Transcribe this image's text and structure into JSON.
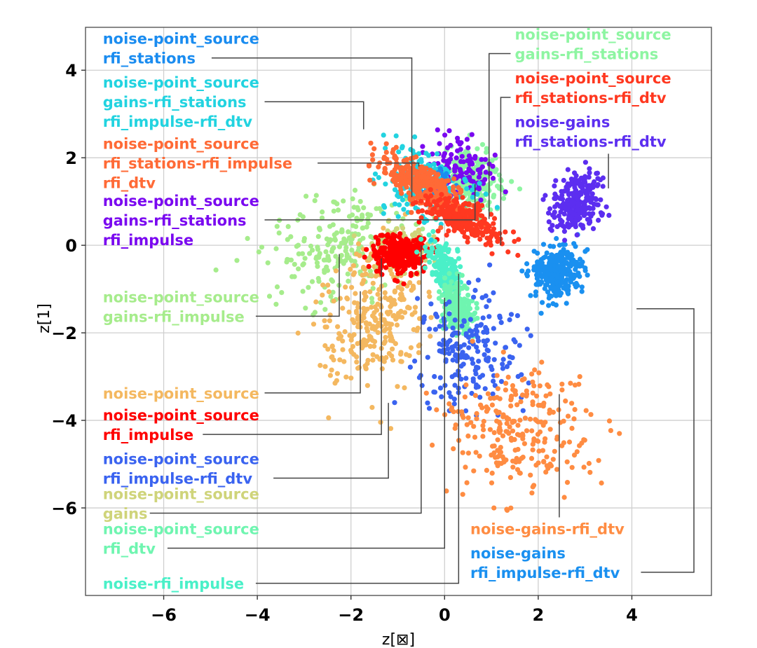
{
  "chart_data": {
    "type": "scatter",
    "title": "",
    "xlabel": "z[⊠]",
    "ylabel": "z[1]",
    "xlim": [
      -7.67,
      5.7
    ],
    "ylim": [
      -8.0,
      4.98
    ],
    "xticks": [
      -6,
      -4,
      -2,
      0,
      2,
      4
    ],
    "yticks": [
      4,
      2,
      0,
      -2,
      -4,
      -6
    ],
    "xtick_labels": [
      "−6",
      "−4",
      "−2",
      "0",
      "2",
      "4"
    ],
    "ytick_labels": [
      "4",
      "2",
      "0",
      "−2",
      "−4",
      "−6"
    ],
    "grid": true,
    "legend": "none (inline cluster annotations with leader lines)",
    "series": [
      {
        "name": "noise-point_source gains-rfi_impulse",
        "color": "#a6ec8c",
        "center": [
          -2.2,
          0.0
        ],
        "spread": [
          1.4,
          1.0
        ],
        "angle_deg": 35,
        "count": 230,
        "seed": 11
      },
      {
        "name": "noise-point_source",
        "color": "#f4b860",
        "center": [
          -1.5,
          -1.6
        ],
        "spread": [
          0.9,
          1.3
        ],
        "angle_deg": -20,
        "count": 300,
        "seed": 12
      },
      {
        "name": "noise-point_source gains",
        "color": "#cfd47a",
        "center": [
          -0.9,
          -0.1
        ],
        "spread": [
          0.55,
          0.45
        ],
        "angle_deg": 0,
        "count": 120,
        "seed": 13
      },
      {
        "name": "noise-point_source rfi_impulse",
        "color": "#ff0000",
        "center": [
          -0.95,
          -0.2
        ],
        "spread": [
          0.45,
          0.38
        ],
        "angle_deg": 0,
        "count": 330,
        "seed": 14
      },
      {
        "name": "noise-rfi_impulse",
        "color": "#4af0c8",
        "center": [
          0.0,
          -0.55
        ],
        "spread": [
          0.22,
          0.6
        ],
        "angle_deg": 20,
        "count": 200,
        "seed": 15
      },
      {
        "name": "noise-point_source rfi_dtv",
        "color": "#6ff5b0",
        "center": [
          0.3,
          -1.4
        ],
        "spread": [
          0.25,
          0.5
        ],
        "angle_deg": 20,
        "count": 200,
        "seed": 16
      },
      {
        "name": "noise-point_source rfi_impulse-rfi_dtv",
        "color": "#3a63f0",
        "center": [
          0.6,
          -2.4
        ],
        "spread": [
          0.9,
          1.1
        ],
        "angle_deg": -30,
        "count": 200,
        "seed": 17
      },
      {
        "name": "noise-gains-rfi_dtv",
        "color": "#ff8c42",
        "center": [
          1.5,
          -4.3
        ],
        "spread": [
          1.3,
          1.2
        ],
        "angle_deg": 0,
        "count": 260,
        "seed": 18
      },
      {
        "name": "noise-gains rfi_impulse-rfi_dtv",
        "color": "#1a90f0",
        "center": [
          2.4,
          -0.6
        ],
        "spread": [
          0.45,
          0.5
        ],
        "angle_deg": -25,
        "count": 300,
        "seed": 19
      },
      {
        "name": "noise-gains rfi_stations-rfi_dtv",
        "color": "#5c2ef0",
        "center": [
          2.8,
          1.0
        ],
        "spread": [
          0.45,
          0.55
        ],
        "angle_deg": -30,
        "count": 240,
        "seed": 20
      },
      {
        "name": "noise-point_source gains-rfi_stations",
        "color": "#8ef5a2",
        "center": [
          0.6,
          1.5
        ],
        "spread": [
          0.5,
          0.55
        ],
        "angle_deg": 0,
        "count": 260,
        "seed": 21
      },
      {
        "name": "noise-point_source gains-rfi_stations rfi_impulse",
        "color": "#7a08f0",
        "center": [
          0.3,
          1.7
        ],
        "spread": [
          0.6,
          0.6
        ],
        "angle_deg": -20,
        "count": 120,
        "seed": 22
      },
      {
        "name": "noise-point_source gains-rfi_stations rfi_impulse-rfi_dtv",
        "color": "#22d3e0",
        "center": [
          -0.4,
          1.4
        ],
        "spread": [
          0.75,
          0.6
        ],
        "angle_deg": -30,
        "count": 200,
        "seed": 23
      },
      {
        "name": "noise-point_source rfi_stations",
        "color": "#1a8cf0",
        "center": [
          -0.2,
          1.5
        ],
        "spread": [
          0.3,
          0.3
        ],
        "angle_deg": 0,
        "count": 30,
        "seed": 24
      },
      {
        "name": "noise-point_source rfi_stations-rfi_impulse rfi_dtv",
        "color": "#ff6a36",
        "center": [
          -0.5,
          1.4
        ],
        "spread": [
          0.9,
          0.35
        ],
        "angle_deg": -32,
        "count": 320,
        "seed": 25
      },
      {
        "name": "noise-point_source rfi_stations-rfi_dtv",
        "color": "#ff3820",
        "center": [
          0.4,
          0.6
        ],
        "spread": [
          0.75,
          0.3
        ],
        "angle_deg": -30,
        "count": 280,
        "seed": 26
      }
    ],
    "annotations": [
      {
        "lines": [
          "noise-point_source",
          "rfi_stations"
        ],
        "color": "#1a8cf0",
        "text_pos": [
          -7.3,
          4.6
        ],
        "anchor": [
          -0.7,
          1.1
        ],
        "elbow": "h-then-v"
      },
      {
        "lines": [
          "noise-point_source",
          "gains-rfi_stations",
          "rfi_impulse-rfi_dtv"
        ],
        "color": "#22d3e0",
        "text_pos": [
          -7.3,
          3.6
        ],
        "anchor": [
          -1.73,
          2.65
        ],
        "elbow": "h-then-v"
      },
      {
        "lines": [
          "noise-point_source",
          "rfi_stations-rfi_impulse",
          "rfi_dtv"
        ],
        "color": "#ff6a36",
        "text_pos": [
          -7.3,
          2.2
        ],
        "anchor": [
          -0.55,
          1.8
        ],
        "elbow": "h-then-v"
      },
      {
        "lines": [
          "noise-point_source",
          "gains-rfi_stations",
          "rfi_impulse"
        ],
        "color": "#7a08f0",
        "text_pos": [
          -7.3,
          0.9
        ],
        "anchor": [
          0.65,
          1.4
        ],
        "elbow": "h-then-v"
      },
      {
        "lines": [
          "noise-point_source",
          "gains-rfi_impulse"
        ],
        "color": "#a6ec8c",
        "text_pos": [
          -7.3,
          -1.3
        ],
        "anchor": [
          -2.25,
          -0.2
        ],
        "elbow": "h-then-v"
      },
      {
        "lines": [
          "noise-point_source"
        ],
        "color": "#f4b860",
        "text_pos": [
          -7.3,
          -3.5
        ],
        "anchor": [
          -1.8,
          -1.05
        ],
        "elbow": "h-then-v"
      },
      {
        "lines": [
          "noise-point_source",
          "rfi_impulse"
        ],
        "color": "#ff0000",
        "text_pos": [
          -7.3,
          -4.0
        ],
        "anchor": [
          -1.35,
          -0.3
        ],
        "elbow": "h-then-v"
      },
      {
        "lines": [
          "noise-point_source",
          "rfi_impulse-rfi_dtv"
        ],
        "color": "#3a63f0",
        "text_pos": [
          -7.3,
          -5.0
        ],
        "anchor": [
          -1.2,
          -3.6
        ],
        "elbow": "h-then-v"
      },
      {
        "lines": [
          "noise-point_source",
          "gains"
        ],
        "color": "#cfd47a",
        "text_pos": [
          -7.3,
          -5.8
        ],
        "anchor": [
          -0.5,
          -0.0
        ],
        "elbow": "h-then-v"
      },
      {
        "lines": [
          "noise-point_source",
          "rfi_dtv"
        ],
        "color": "#6ff5b0",
        "text_pos": [
          -7.3,
          -6.6
        ],
        "anchor": [
          0.0,
          -1.2
        ],
        "elbow": "h-then-v"
      },
      {
        "lines": [
          "noise-rfi_impulse"
        ],
        "color": "#4af0c8",
        "text_pos": [
          -7.3,
          -7.85
        ],
        "anchor": [
          0.3,
          -0.65
        ],
        "elbow": "h-then-v"
      },
      {
        "lines": [
          "noise-point_source",
          "gains-rfi_stations"
        ],
        "color": "#8ef5a2",
        "text_pos": [
          1.5,
          4.7
        ],
        "anchor": [
          0.95,
          0.6
        ],
        "elbow": "h-then-v"
      },
      {
        "lines": [
          "noise-point_source",
          "rfi_stations-rfi_dtv"
        ],
        "color": "#ff3820",
        "text_pos": [
          1.5,
          3.7
        ],
        "anchor": [
          1.2,
          0.0
        ],
        "elbow": "h-then-v"
      },
      {
        "lines": [
          "noise-gains",
          "rfi_stations-rfi_dtv"
        ],
        "color": "#5c2ef0",
        "text_pos": [
          1.5,
          2.7
        ],
        "anchor": [
          3.5,
          1.3
        ],
        "elbow": "v-only"
      },
      {
        "lines": [
          "noise-gains-rfi_dtv"
        ],
        "color": "#ff8c42",
        "text_pos": [
          0.55,
          -6.6
        ],
        "anchor": [
          2.45,
          -3.4
        ],
        "elbow": "v-only"
      },
      {
        "lines": [
          "noise-gains",
          "rfi_impulse-rfi_dtv"
        ],
        "color": "#1a90f0",
        "text_pos": [
          0.55,
          -7.15
        ],
        "anchor": [
          4.1,
          -1.45
        ],
        "elbow": "h-v-h"
      }
    ]
  }
}
